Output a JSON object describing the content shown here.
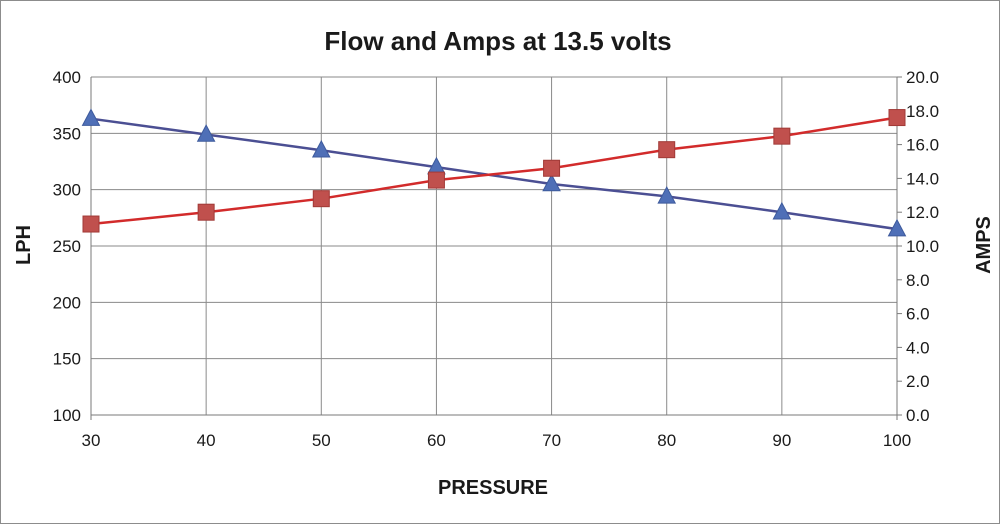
{
  "chart_data": {
    "type": "line",
    "title": "Flow and Amps at 13.5 volts",
    "xlabel": "PRESSURE",
    "ylabel": "LPH",
    "y2label": "AMPS",
    "x": [
      30,
      40,
      50,
      60,
      70,
      80,
      90,
      100
    ],
    "xlim": [
      30,
      100
    ],
    "xticks": [
      "30",
      "40",
      "50",
      "60",
      "70",
      "80",
      "90",
      "100"
    ],
    "ylim": [
      100,
      400
    ],
    "yticks": [
      "100",
      "150",
      "200",
      "250",
      "300",
      "350",
      "400"
    ],
    "y2lim": [
      0,
      20
    ],
    "y2ticks": [
      "0.0",
      "2.0",
      "4.0",
      "6.0",
      "8.0",
      "10.0",
      "12.0",
      "14.0",
      "16.0",
      "18.0",
      "20.0"
    ],
    "grid": true,
    "legend": "none",
    "series": [
      {
        "axis": "left",
        "marker": "triangle",
        "color": "#4f6fb7",
        "line_color": "#4b4f93",
        "values": [
          363,
          349,
          335,
          320,
          305,
          294,
          280,
          265
        ]
      },
      {
        "axis": "right",
        "marker": "square",
        "color": "#c0504d",
        "line_color": "#d22b2b",
        "values": [
          11.3,
          12.0,
          12.8,
          13.9,
          14.6,
          15.7,
          16.5,
          17.6
        ]
      }
    ]
  }
}
